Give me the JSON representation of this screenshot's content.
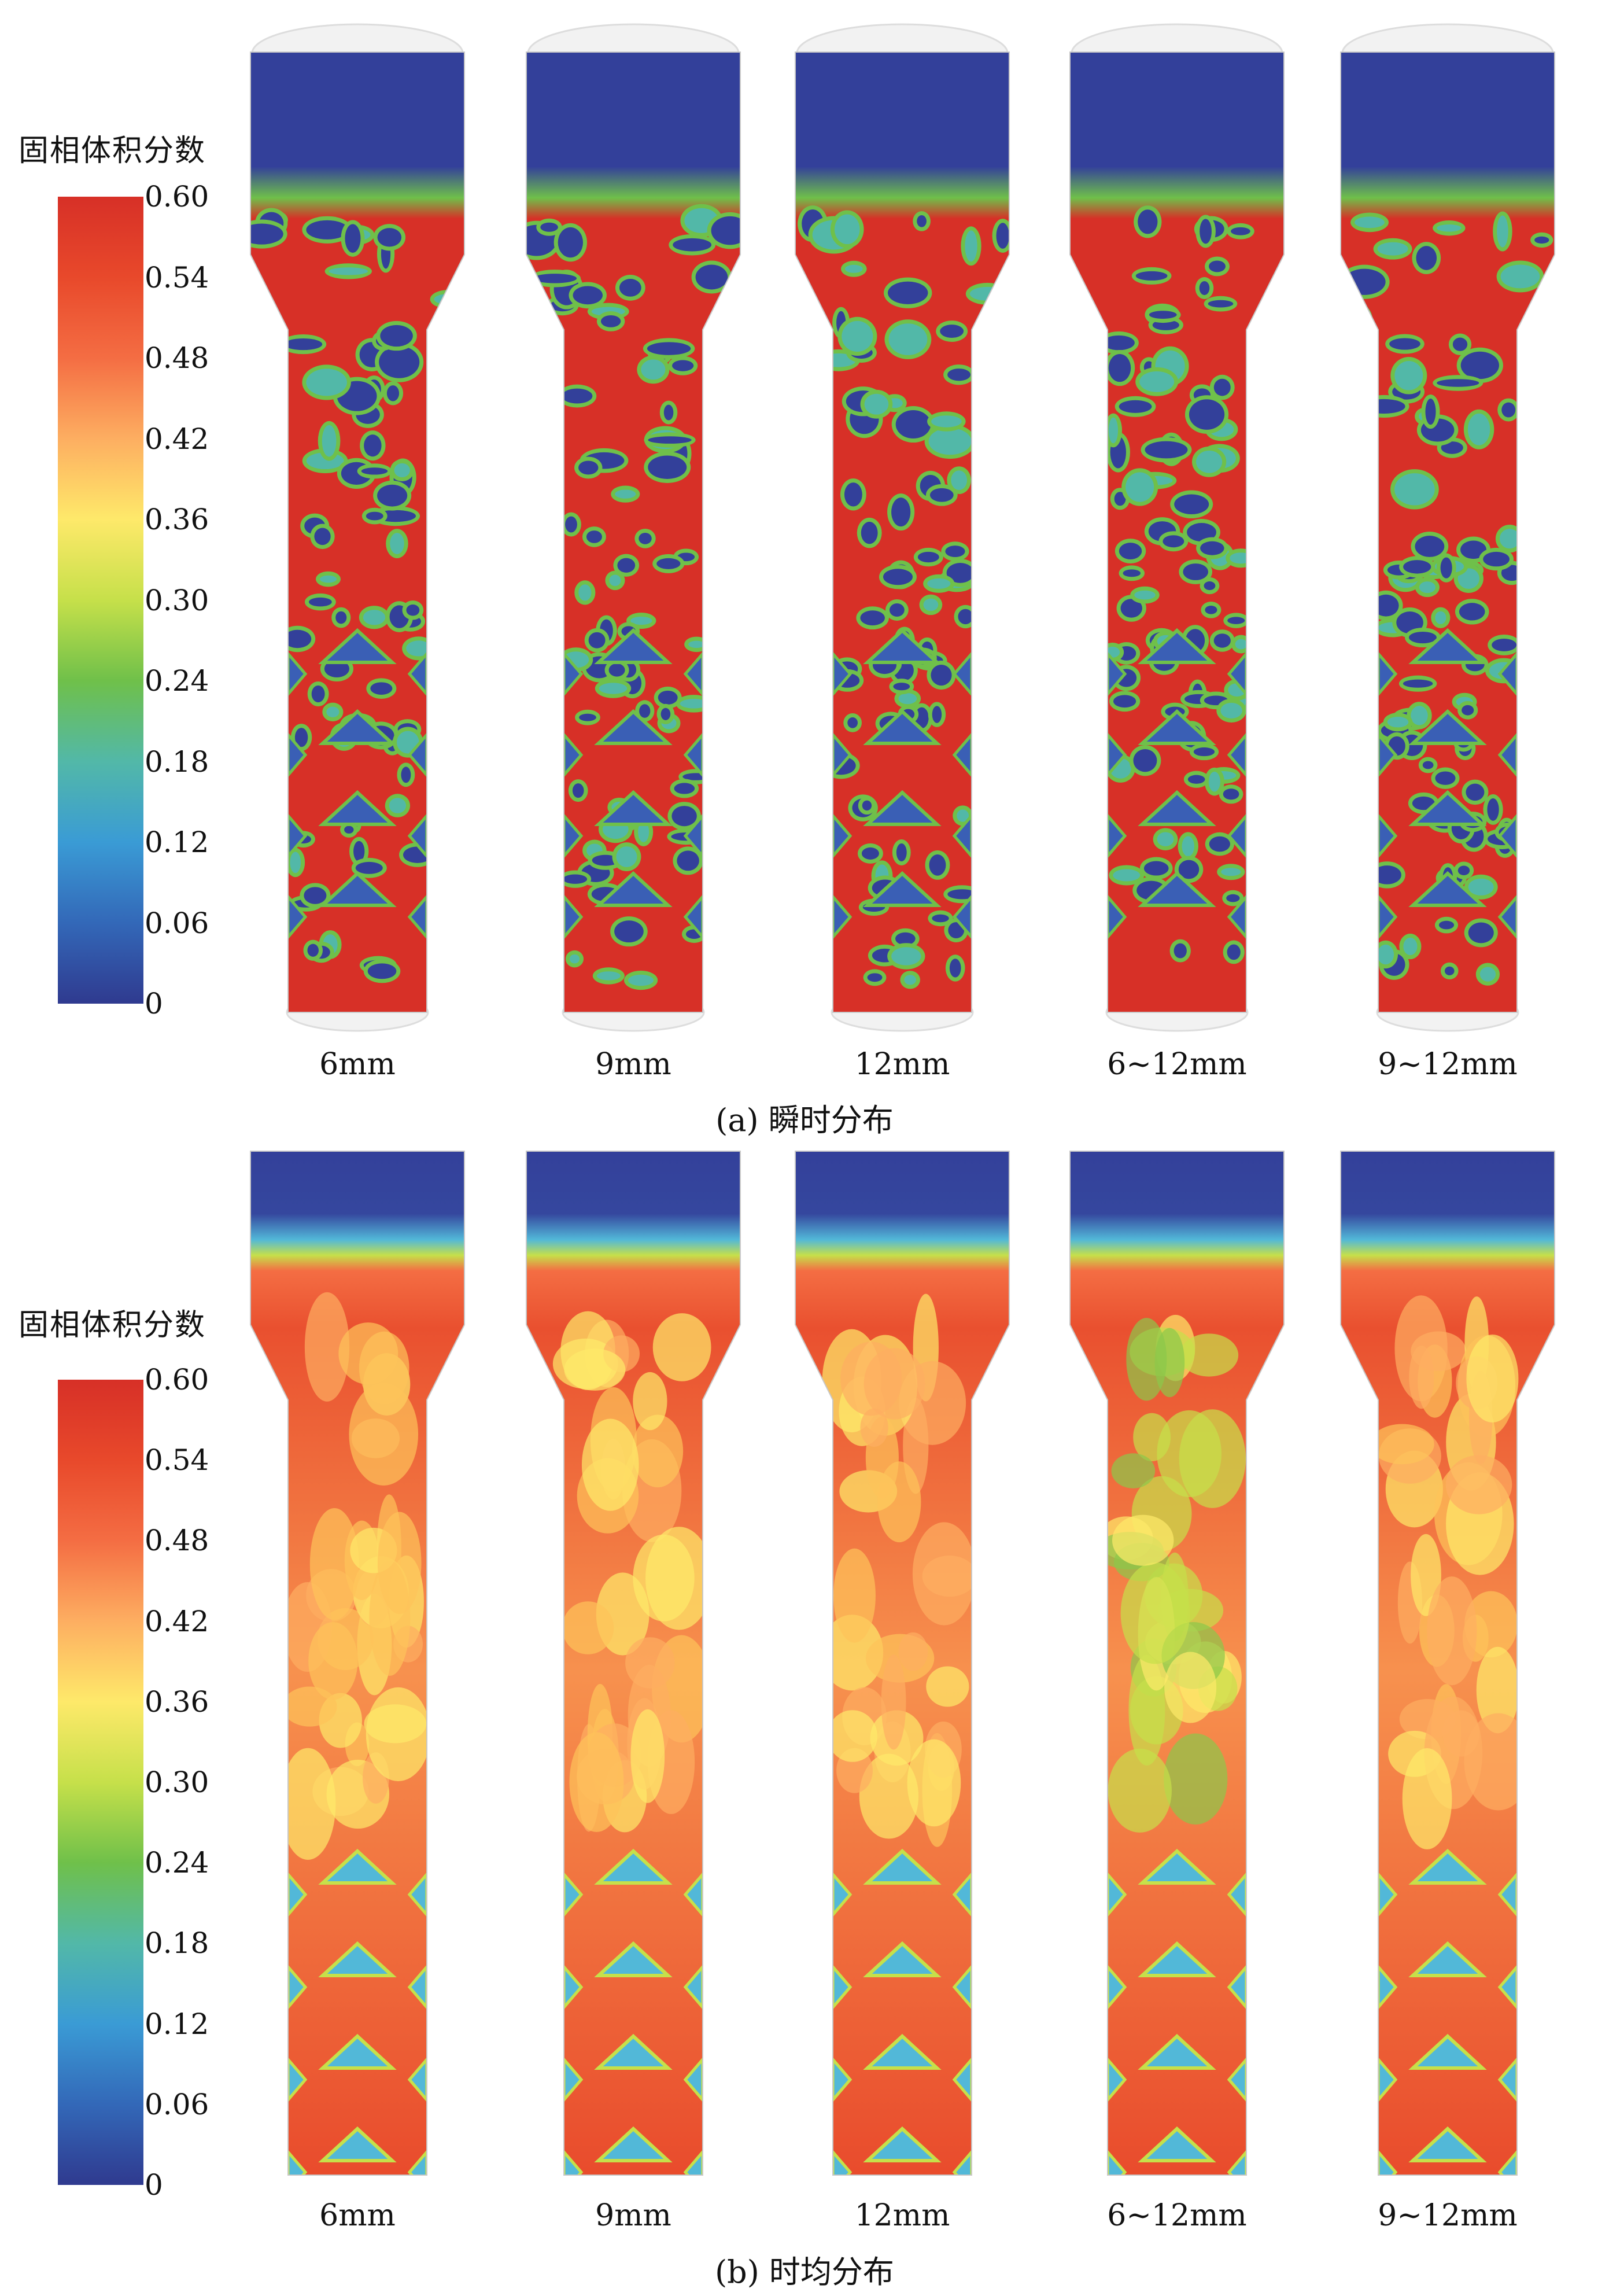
{
  "colorbar": {
    "title": "固相体积分数",
    "ticks": [
      "0.60",
      "0.54",
      "0.48",
      "0.42",
      "0.36",
      "0.30",
      "0.24",
      "0.18",
      "0.12",
      "0.06",
      "0"
    ],
    "colors": [
      "#d73027",
      "#f46d43",
      "#fdae61",
      "#fee96a",
      "#c6e04a",
      "#6fc04a",
      "#52b8a8",
      "#3a9bd5",
      "#3368b8",
      "#2f3a8f"
    ]
  },
  "panels": [
    {
      "caption": "(a) 瞬时分布",
      "mode": "instantaneous",
      "columns": [
        "6mm",
        "9mm",
        "12mm",
        "6~12mm",
        "9~12mm"
      ]
    },
    {
      "caption": "(b) 时均分布",
      "mode": "time-averaged",
      "columns": [
        "6mm",
        "9mm",
        "12mm",
        "6~12mm",
        "9~12mm"
      ]
    }
  ]
}
